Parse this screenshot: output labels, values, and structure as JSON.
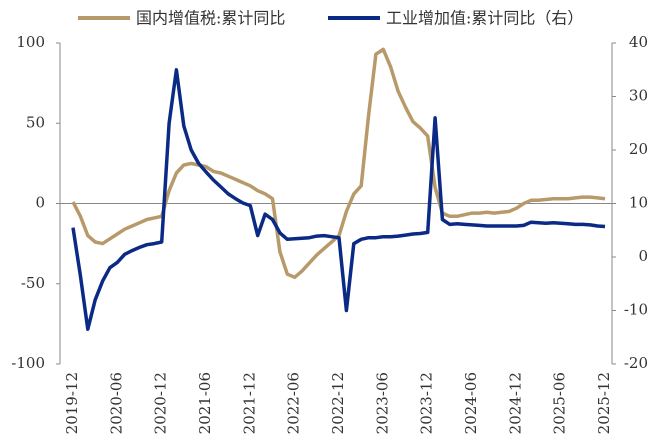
{
  "chart_data": {
    "type": "line",
    "categories": [
      "2019-12",
      null,
      null,
      null,
      null,
      null,
      "2020-06",
      null,
      null,
      null,
      null,
      null,
      "2020-12",
      null,
      null,
      null,
      null,
      null,
      "2021-06",
      null,
      null,
      null,
      null,
      null,
      "2021-12",
      null,
      null,
      null,
      null,
      null,
      "2022-06",
      null,
      null,
      null,
      null,
      null,
      "2022-12",
      null,
      null,
      null,
      null,
      null,
      "2023-06",
      null,
      null,
      null,
      null,
      null,
      "2023-12",
      null,
      null,
      null,
      null,
      null,
      "2024-06",
      null,
      null,
      null,
      null,
      null,
      "2024-12",
      null,
      null,
      null,
      null,
      null,
      "2025-06",
      null,
      null,
      null,
      null,
      null,
      "2025-12"
    ],
    "series": [
      {
        "name": "国内增值税:累计同比",
        "color": "#b89a6a",
        "values": [
          1,
          -8,
          -20,
          -24,
          -25,
          -22,
          -19,
          -16,
          -14,
          -12,
          -10,
          -9,
          -8,
          8,
          19,
          24,
          25,
          24,
          23,
          20,
          19,
          17,
          15,
          13,
          11,
          8,
          6,
          3,
          -30,
          -44,
          -46,
          -42,
          -37,
          -32,
          -28,
          -24,
          -20,
          -5,
          6,
          11,
          55,
          93,
          96,
          85,
          70,
          60,
          51,
          47,
          42,
          10,
          -6,
          -8,
          -8,
          -7,
          -6,
          -6,
          -5.5,
          -6,
          -5.5,
          -5,
          -3,
          0,
          2,
          2,
          2.5,
          3,
          3,
          3,
          3.5,
          4,
          4,
          3.5,
          3
        ]
      },
      {
        "name": "工业增加值:累计同比（右）",
        "color": "#0a2a85",
        "axis": "y2",
        "values": [
          5.5,
          -3.5,
          -13.5,
          -8,
          -4.5,
          -2,
          -1,
          0.5,
          1.2,
          1.8,
          2.3,
          2.5,
          2.8,
          25,
          35,
          24.5,
          20,
          17.5,
          15.9,
          14.4,
          13.1,
          11.8,
          10.9,
          10.1,
          9.6,
          4,
          8,
          7,
          4.5,
          3.3,
          3.4,
          3.5,
          3.6,
          3.9,
          4,
          3.8,
          3.6,
          -10,
          2.5,
          3.3,
          3.6,
          3.6,
          3.8,
          3.8,
          3.9,
          4.1,
          4.3,
          4.4,
          4.6,
          26,
          7,
          6.1,
          6.2,
          6.1,
          6,
          5.9,
          5.8,
          5.8,
          5.8,
          5.8,
          5.8,
          5.9,
          6.5,
          6.4,
          6.3,
          6.4,
          6.3,
          6.2,
          6.1,
          6.1,
          6,
          5.8,
          5.7
        ]
      }
    ],
    "ylim": [
      -100,
      100
    ],
    "yticks": [
      -100,
      -50,
      0,
      50,
      100
    ],
    "y2lim": [
      -20,
      40
    ],
    "y2ticks": [
      -20,
      -10,
      0,
      10,
      20,
      30,
      40
    ],
    "grid": false
  }
}
